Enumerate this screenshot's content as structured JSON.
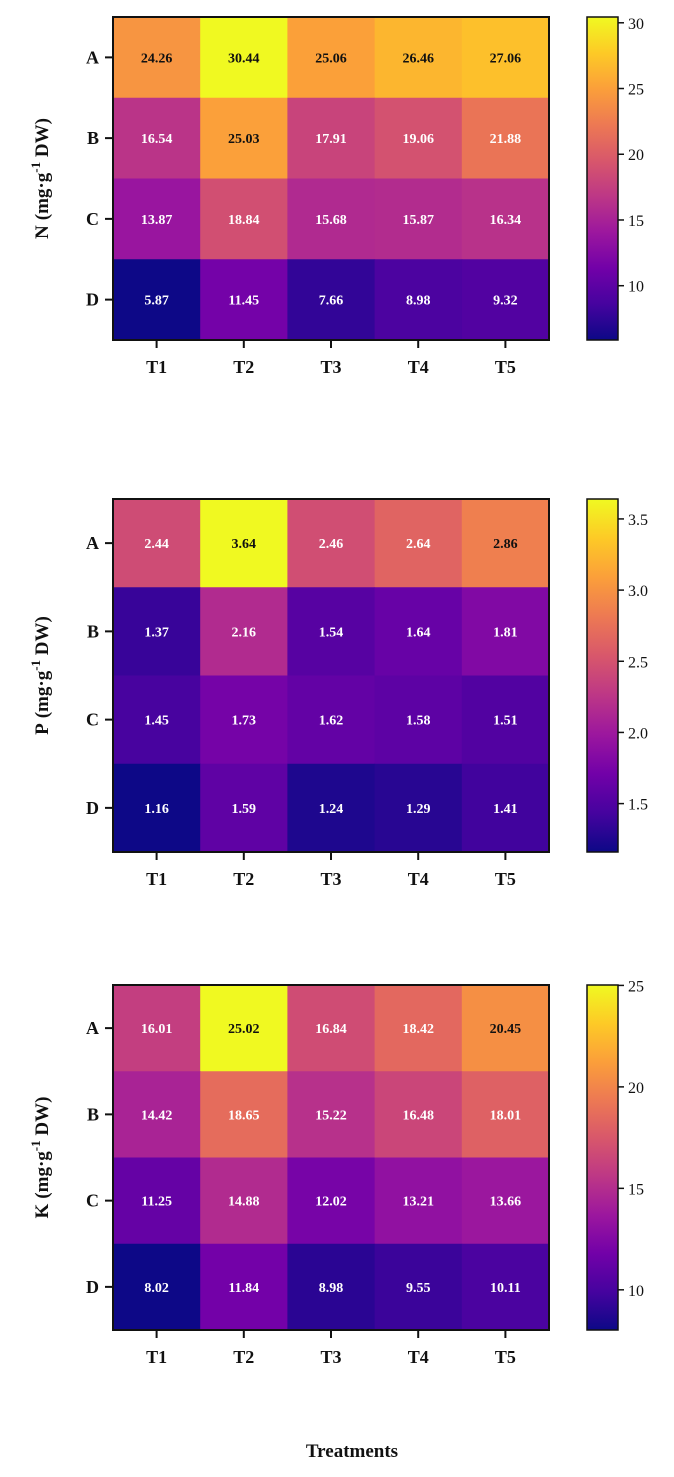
{
  "xlabel": "Treatments",
  "colors": [
    "#0d0887",
    "#46039f",
    "#7201a8",
    "#9c179e",
    "#bd3786",
    "#d8576b",
    "#ed7953",
    "#fb9f3a",
    "#fdca26",
    "#f0f921"
  ],
  "chart_data": [
    {
      "type": "heatmap",
      "ylabel": {
        "letter": "N",
        "unit": "(mg·g",
        "sup": "-1",
        "tail": " DW)"
      },
      "categories": [
        "T1",
        "T2",
        "T3",
        "T4",
        "T5"
      ],
      "rows": [
        "A",
        "B",
        "C",
        "D"
      ],
      "values": [
        [
          24.26,
          30.44,
          25.06,
          26.46,
          27.06
        ],
        [
          16.54,
          25.03,
          17.91,
          19.06,
          21.88
        ],
        [
          13.87,
          18.84,
          15.68,
          15.87,
          16.34
        ],
        [
          5.87,
          11.45,
          7.66,
          8.98,
          9.32
        ]
      ],
      "labels": [
        [
          "24.26",
          "30.44",
          "25.06",
          "26.46",
          "27.06"
        ],
        [
          "16.54",
          "25.03",
          "17.91",
          "19.06",
          "21.88"
        ],
        [
          "13.87",
          "18.84",
          "15.68",
          "15.87",
          "16.34"
        ],
        [
          "5.87",
          "11.45",
          "7.66",
          "8.98",
          "9.32"
        ]
      ],
      "colorbar": {
        "min": 5.87,
        "max": 30.44,
        "ticks": [
          10,
          15,
          20,
          25,
          30
        ],
        "tick_labels": [
          "10",
          "15",
          "20",
          "25",
          "30"
        ]
      }
    },
    {
      "type": "heatmap",
      "ylabel": {
        "letter": "P",
        "unit": "(mg·g",
        "sup": "-1",
        "tail": " DW)"
      },
      "categories": [
        "T1",
        "T2",
        "T3",
        "T4",
        "T5"
      ],
      "rows": [
        "A",
        "B",
        "C",
        "D"
      ],
      "values": [
        [
          2.44,
          3.64,
          2.46,
          2.64,
          2.86
        ],
        [
          1.37,
          2.16,
          1.54,
          1.64,
          1.81
        ],
        [
          1.45,
          1.73,
          1.62,
          1.58,
          1.51
        ],
        [
          1.16,
          1.59,
          1.24,
          1.29,
          1.41
        ]
      ],
      "labels": [
        [
          "2.44",
          "3.64",
          "2.46",
          "2.64",
          "2.86"
        ],
        [
          "1.37",
          "2.16",
          "1.54",
          "1.64",
          "1.81"
        ],
        [
          "1.45",
          "1.73",
          "1.62",
          "1.58",
          "1.51"
        ],
        [
          "1.16",
          "1.59",
          "1.24",
          "1.29",
          "1.41"
        ]
      ],
      "colorbar": {
        "min": 1.16,
        "max": 3.64,
        "ticks": [
          1.5,
          2.0,
          2.5,
          3.0,
          3.5
        ],
        "tick_labels": [
          "1.5",
          "2.0",
          "2.5",
          "3.0",
          "3.5"
        ]
      }
    },
    {
      "type": "heatmap",
      "ylabel": {
        "letter": "K",
        "unit": "(mg·g",
        "sup": "-1",
        "tail": " DW)"
      },
      "categories": [
        "T1",
        "T2",
        "T3",
        "T4",
        "T5"
      ],
      "rows": [
        "A",
        "B",
        "C",
        "D"
      ],
      "values": [
        [
          16.01,
          25.02,
          16.84,
          18.42,
          20.45
        ],
        [
          14.42,
          18.65,
          15.22,
          16.48,
          18.01
        ],
        [
          11.25,
          14.88,
          12.02,
          13.21,
          13.66
        ],
        [
          8.02,
          11.84,
          8.98,
          9.55,
          10.11
        ]
      ],
      "labels": [
        [
          "16.01",
          "25.02",
          "16.84",
          "18.42",
          "20.45"
        ],
        [
          "14.42",
          "18.65",
          "15.22",
          "16.48",
          "18.01"
        ],
        [
          "11.25",
          "14.88",
          "12.02",
          "13.21",
          "13.66"
        ],
        [
          "8.02",
          "11.84",
          "8.98",
          "9.55",
          "10.11"
        ]
      ],
      "colorbar": {
        "min": 8.02,
        "max": 25.02,
        "ticks": [
          10,
          15,
          20,
          25
        ],
        "tick_labels": [
          "10",
          "15",
          "20",
          "25"
        ]
      }
    }
  ]
}
